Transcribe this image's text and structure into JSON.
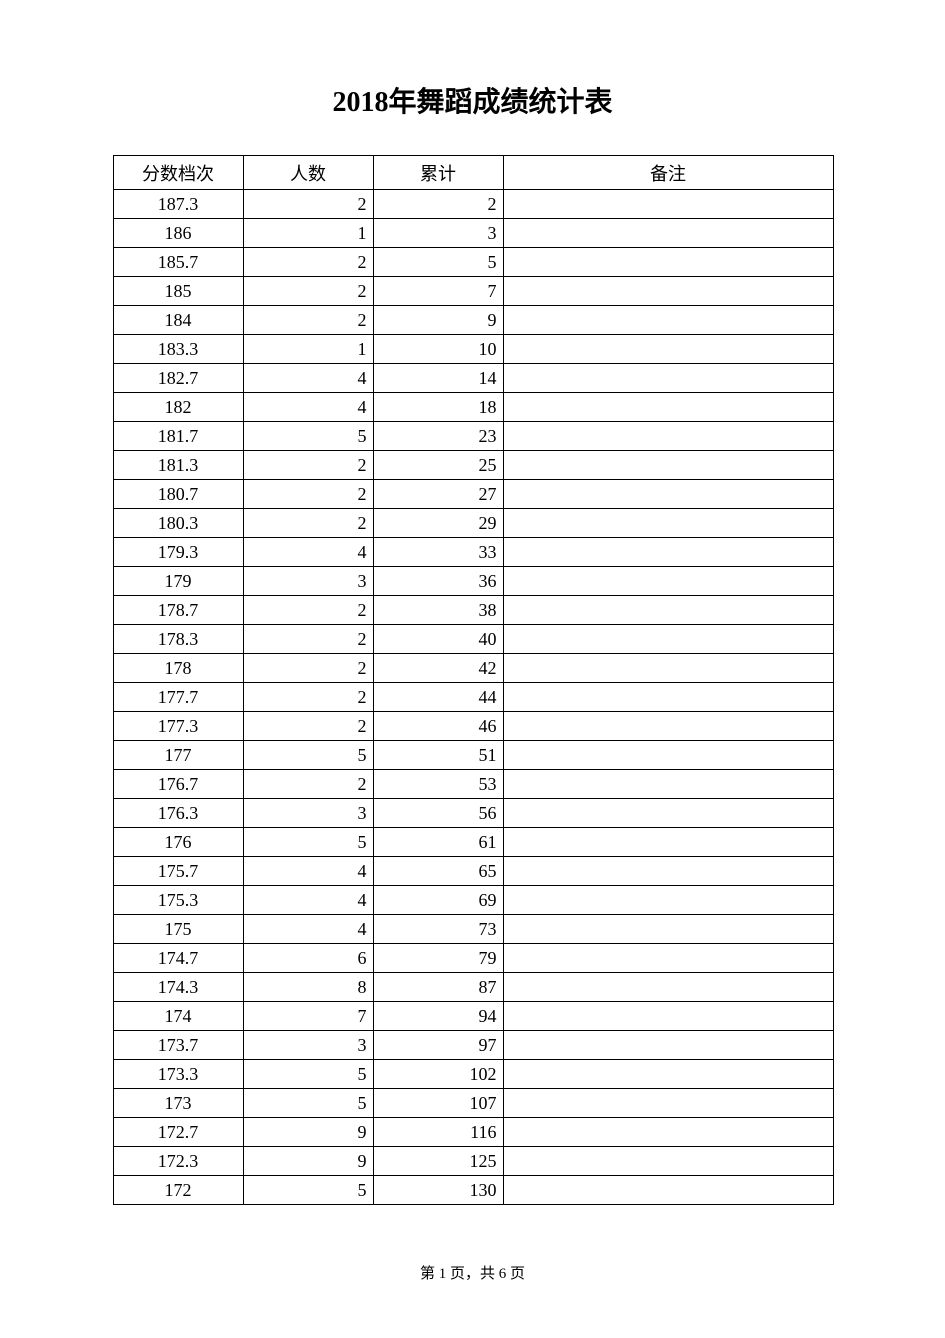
{
  "title": "2018年舞蹈成绩统计表",
  "table": {
    "columns": [
      "分数档次",
      "人数",
      "累计",
      "备注"
    ],
    "rows": [
      [
        "187.3",
        "2",
        "2",
        ""
      ],
      [
        "186",
        "1",
        "3",
        ""
      ],
      [
        "185.7",
        "2",
        "5",
        ""
      ],
      [
        "185",
        "2",
        "7",
        ""
      ],
      [
        "184",
        "2",
        "9",
        ""
      ],
      [
        "183.3",
        "1",
        "10",
        ""
      ],
      [
        "182.7",
        "4",
        "14",
        ""
      ],
      [
        "182",
        "4",
        "18",
        ""
      ],
      [
        "181.7",
        "5",
        "23",
        ""
      ],
      [
        "181.3",
        "2",
        "25",
        ""
      ],
      [
        "180.7",
        "2",
        "27",
        ""
      ],
      [
        "180.3",
        "2",
        "29",
        ""
      ],
      [
        "179.3",
        "4",
        "33",
        ""
      ],
      [
        "179",
        "3",
        "36",
        ""
      ],
      [
        "178.7",
        "2",
        "38",
        ""
      ],
      [
        "178.3",
        "2",
        "40",
        ""
      ],
      [
        "178",
        "2",
        "42",
        ""
      ],
      [
        "177.7",
        "2",
        "44",
        ""
      ],
      [
        "177.3",
        "2",
        "46",
        ""
      ],
      [
        "177",
        "5",
        "51",
        ""
      ],
      [
        "176.7",
        "2",
        "53",
        ""
      ],
      [
        "176.3",
        "3",
        "56",
        ""
      ],
      [
        "176",
        "5",
        "61",
        ""
      ],
      [
        "175.7",
        "4",
        "65",
        ""
      ],
      [
        "175.3",
        "4",
        "69",
        ""
      ],
      [
        "175",
        "4",
        "73",
        ""
      ],
      [
        "174.7",
        "6",
        "79",
        ""
      ],
      [
        "174.3",
        "8",
        "87",
        ""
      ],
      [
        "174",
        "7",
        "94",
        ""
      ],
      [
        "173.7",
        "3",
        "97",
        ""
      ],
      [
        "173.3",
        "5",
        "102",
        ""
      ],
      [
        "173",
        "5",
        "107",
        ""
      ],
      [
        "172.7",
        "9",
        "116",
        ""
      ],
      [
        "172.3",
        "9",
        "125",
        ""
      ],
      [
        "172",
        "5",
        "130",
        ""
      ]
    ]
  },
  "footer": "第 1 页，共 6 页"
}
